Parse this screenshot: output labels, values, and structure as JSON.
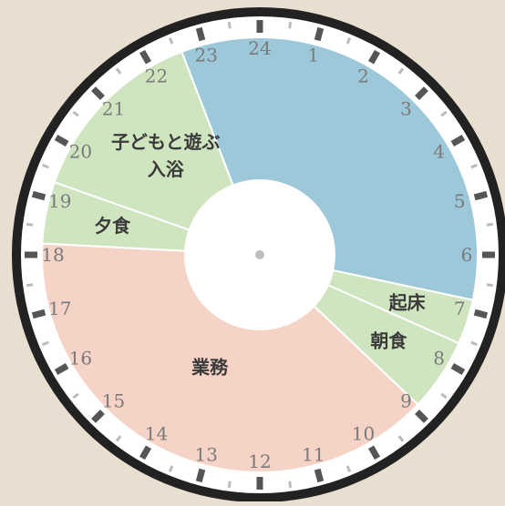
{
  "clock": {
    "hour_labels": [
      "24",
      "1",
      "2",
      "3",
      "4",
      "5",
      "6",
      "7",
      "8",
      "9",
      "10",
      "11",
      "12",
      "13",
      "14",
      "15",
      "16",
      "17",
      "18",
      "19",
      "20",
      "21",
      "22",
      "23"
    ]
  },
  "segments": [
    {
      "id": "sleep",
      "label": [],
      "start_hour": 22.6,
      "end_hour": 6.8,
      "color": "#9cc8da"
    },
    {
      "id": "wake-up",
      "label": [
        "起床"
      ],
      "start_hour": 6.8,
      "end_hour": 7.6,
      "color": "#cfe5bf"
    },
    {
      "id": "breakfast",
      "label": [
        "朝食"
      ],
      "start_hour": 7.6,
      "end_hour": 8.9,
      "color": "#cfe5bf"
    },
    {
      "id": "work",
      "label": [
        "業務"
      ],
      "start_hour": 8.9,
      "end_hour": 18.2,
      "color": "#f5d3c6"
    },
    {
      "id": "dinner",
      "label": [
        "夕食"
      ],
      "start_hour": 18.2,
      "end_hour": 19.3,
      "color": "#cfe5bf"
    },
    {
      "id": "family",
      "label": [
        "子どもと遊ぶ",
        "入浴"
      ],
      "start_hour": 19.3,
      "end_hour": 22.6,
      "color": "#cfe5bf"
    }
  ],
  "colors": {
    "background": "#e8dfd0",
    "rim": "#222222",
    "dial": "#ffffff",
    "tick_major": "#555555",
    "tick_minor": "#bbbbbb",
    "hour_label": "#7a7a7a",
    "segment_label": "#3a3a3a",
    "center_dot": "#bdbdbd"
  }
}
